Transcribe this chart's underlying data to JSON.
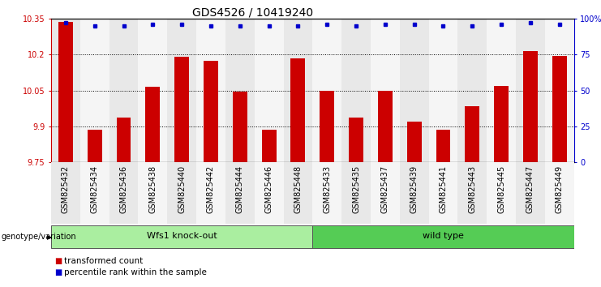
{
  "title": "GDS4526 / 10419240",
  "categories": [
    "GSM825432",
    "GSM825434",
    "GSM825436",
    "GSM825438",
    "GSM825440",
    "GSM825442",
    "GSM825444",
    "GSM825446",
    "GSM825448",
    "GSM825433",
    "GSM825435",
    "GSM825437",
    "GSM825439",
    "GSM825441",
    "GSM825443",
    "GSM825445",
    "GSM825447",
    "GSM825449"
  ],
  "bar_values": [
    10.335,
    9.885,
    9.935,
    10.065,
    10.19,
    10.175,
    10.045,
    9.885,
    10.185,
    10.05,
    9.935,
    10.05,
    9.92,
    9.885,
    9.985,
    10.07,
    10.215,
    10.195
  ],
  "percentile_values": [
    97,
    95,
    95,
    96,
    96,
    95,
    95,
    95,
    95,
    96,
    95,
    96,
    96,
    95,
    95,
    96,
    97,
    96
  ],
  "group1_label": "Wfs1 knock-out",
  "group2_label": "wild type",
  "group1_count": 9,
  "group2_count": 9,
  "ylim_left": [
    9.75,
    10.35
  ],
  "ylim_right": [
    0,
    100
  ],
  "yticks_left": [
    9.75,
    9.9,
    10.05,
    10.2,
    10.35
  ],
  "ytick_labels_left": [
    "9.75",
    "9.9",
    "10.05",
    "10.2",
    "10.35"
  ],
  "yticks_right": [
    0,
    25,
    50,
    75,
    100
  ],
  "ytick_labels_right": [
    "0",
    "25",
    "50",
    "75",
    "100%"
  ],
  "bar_color": "#cc0000",
  "dot_color": "#0000cc",
  "group1_color": "#aaeea0",
  "group2_color": "#55cc55",
  "legend_label1": "transformed count",
  "legend_label2": "percentile rank within the sample",
  "genotype_label": "genotype/variation",
  "hgrid_values": [
    9.9,
    10.05,
    10.2
  ],
  "title_fontsize": 10,
  "tick_fontsize": 7,
  "group_fontsize": 8,
  "legend_fontsize": 7.5
}
